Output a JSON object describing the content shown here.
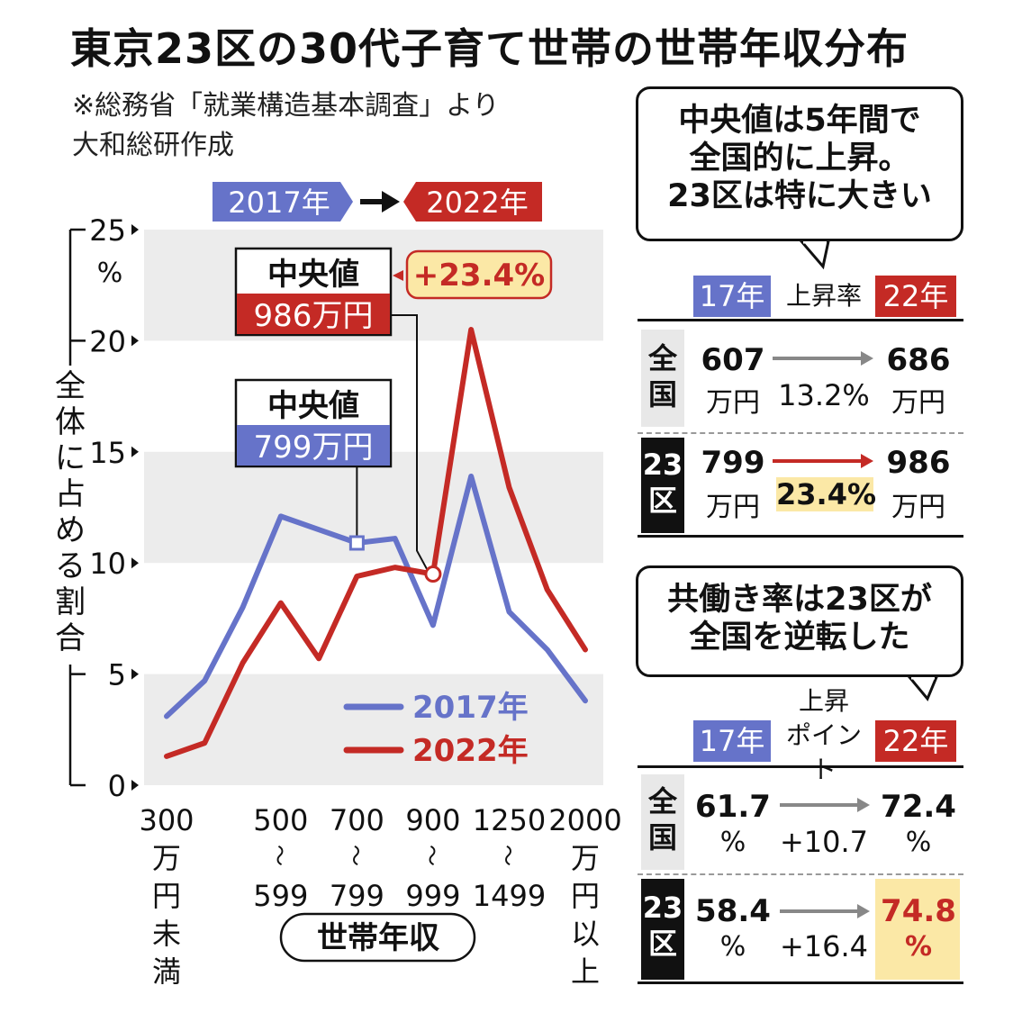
{
  "title": "東京23区の30代子育て世帯の世帯年収分布",
  "source_lines": [
    "※総務省「就業構造基本調査」より",
    "大和総研作成"
  ],
  "legend_top": {
    "from": "2017年",
    "to": "2022年"
  },
  "colors": {
    "blue": "#6673c9",
    "red": "#c42a25",
    "band": "#ececec",
    "highlight": "#fbe8a6"
  },
  "chart_data": {
    "type": "line",
    "ylabel": "全体に占める割合",
    "yunit": "%",
    "xlabel": "世帯年収",
    "ylim": [
      0,
      25
    ],
    "yticks": [
      0,
      5,
      10,
      15,
      20,
      25
    ],
    "x_tick_labels": [
      {
        "idx": 0,
        "lines": [
          "300",
          "万",
          "円",
          "未",
          "満"
        ]
      },
      {
        "idx": 3,
        "lines": [
          "500",
          "〜",
          "599"
        ]
      },
      {
        "idx": 5,
        "lines": [
          "700",
          "〜",
          "799"
        ]
      },
      {
        "idx": 7,
        "lines": [
          "900",
          "〜",
          "999"
        ]
      },
      {
        "idx": 9,
        "lines": [
          "1250",
          "〜",
          "1499"
        ]
      },
      {
        "idx": 11,
        "lines": [
          "2000",
          "万",
          "円",
          "以",
          "上"
        ]
      }
    ],
    "point_count": 12,
    "series": [
      {
        "name": "2017年",
        "color": "#6673c9",
        "values": [
          3.1,
          4.7,
          8.0,
          12.1,
          11.5,
          10.9,
          11.1,
          7.2,
          13.9,
          7.8,
          6.1,
          3.8
        ]
      },
      {
        "name": "2022年",
        "color": "#c42a25",
        "values": [
          1.3,
          1.9,
          5.5,
          8.2,
          5.7,
          9.4,
          9.8,
          9.5,
          20.5,
          13.4,
          8.8,
          6.1
        ]
      }
    ],
    "annotations": {
      "median_2017": {
        "label": "中央値",
        "value": "799万円",
        "marker_idx": 5,
        "marker_value": 10.9
      },
      "median_2022": {
        "label": "中央値",
        "value": "986万円",
        "marker_idx": 7,
        "marker_value": 9.5
      },
      "change": "+23.4%"
    }
  },
  "panel1": {
    "bubble_lines": [
      "中央値は5年間で",
      "全国的に上昇。",
      "23区は特に大きい"
    ],
    "headers": {
      "from": "17年",
      "mid": "上昇率",
      "to": "22年"
    },
    "rows": [
      {
        "label": "全国",
        "from": "607",
        "from_unit": "万円",
        "rate": "13.2%",
        "to": "686",
        "to_unit": "万円"
      },
      {
        "label": "23区",
        "from": "799",
        "from_unit": "万円",
        "rate": "23.4%",
        "to": "986",
        "to_unit": "万円"
      }
    ]
  },
  "panel2": {
    "bubble_lines": [
      "共働き率は23区が",
      "全国を逆転した"
    ],
    "headers": {
      "from": "17年",
      "mid_line1": "上昇",
      "mid_line2": "ポイント",
      "to": "22年"
    },
    "rows": [
      {
        "label": "全国",
        "from": "61.7",
        "from_unit": "%",
        "rate": "+10.7",
        "to": "72.4",
        "to_unit": "%"
      },
      {
        "label": "23区",
        "from": "58.4",
        "from_unit": "%",
        "rate": "+16.4",
        "to": "74.8",
        "to_unit": "%"
      }
    ]
  }
}
